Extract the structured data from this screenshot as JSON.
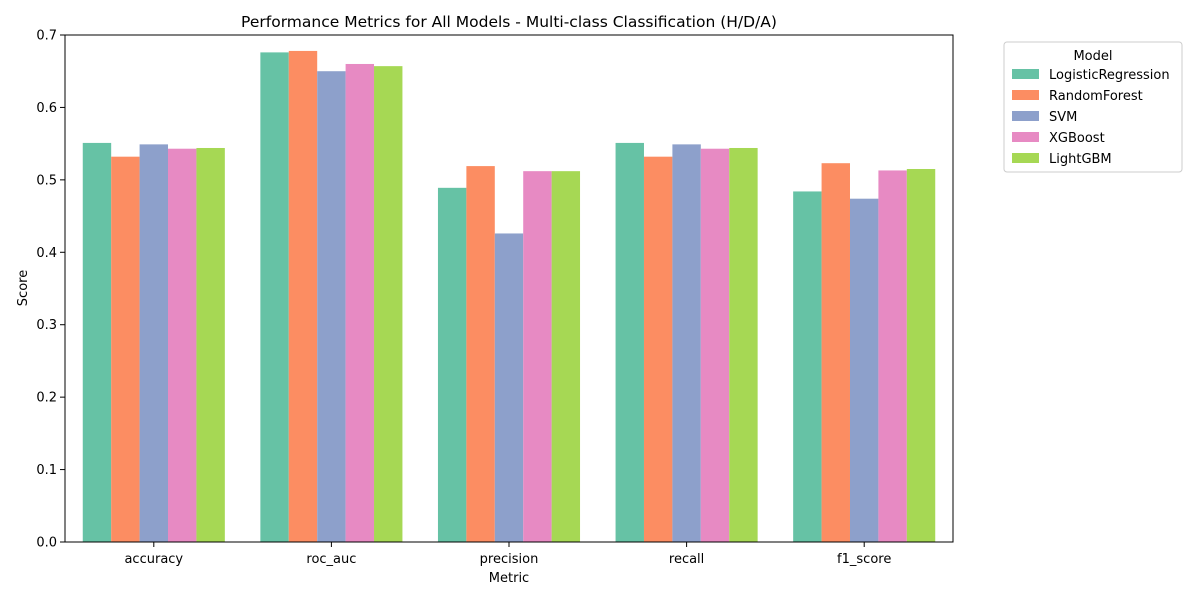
{
  "chart_data": {
    "type": "bar",
    "title": "Performance Metrics for All Models - Multi-class Classification (H/D/A)",
    "xlabel": "Metric",
    "ylabel": "Score",
    "ylim": [
      0,
      0.7
    ],
    "yticks": [
      "0.0",
      "0.1",
      "0.2",
      "0.3",
      "0.4",
      "0.5",
      "0.6",
      "0.7"
    ],
    "categories": [
      "accuracy",
      "roc_auc",
      "precision",
      "recall",
      "f1_score"
    ],
    "legend": {
      "title": "Model",
      "placement": "outside upper right"
    },
    "grid": false,
    "series": [
      {
        "name": "LogisticRegression",
        "color": "#66c2a5",
        "values": [
          0.551,
          0.676,
          0.489,
          0.551,
          0.484
        ]
      },
      {
        "name": "RandomForest",
        "color": "#fc8d62",
        "values": [
          0.532,
          0.678,
          0.519,
          0.532,
          0.523
        ]
      },
      {
        "name": "SVM",
        "color": "#8da0cb",
        "values": [
          0.549,
          0.65,
          0.426,
          0.549,
          0.474
        ]
      },
      {
        "name": "XGBoost",
        "color": "#e78ac3",
        "values": [
          0.543,
          0.66,
          0.512,
          0.543,
          0.513
        ]
      },
      {
        "name": "LightGBM",
        "color": "#a6d854",
        "values": [
          0.544,
          0.657,
          0.512,
          0.544,
          0.515
        ]
      }
    ]
  }
}
